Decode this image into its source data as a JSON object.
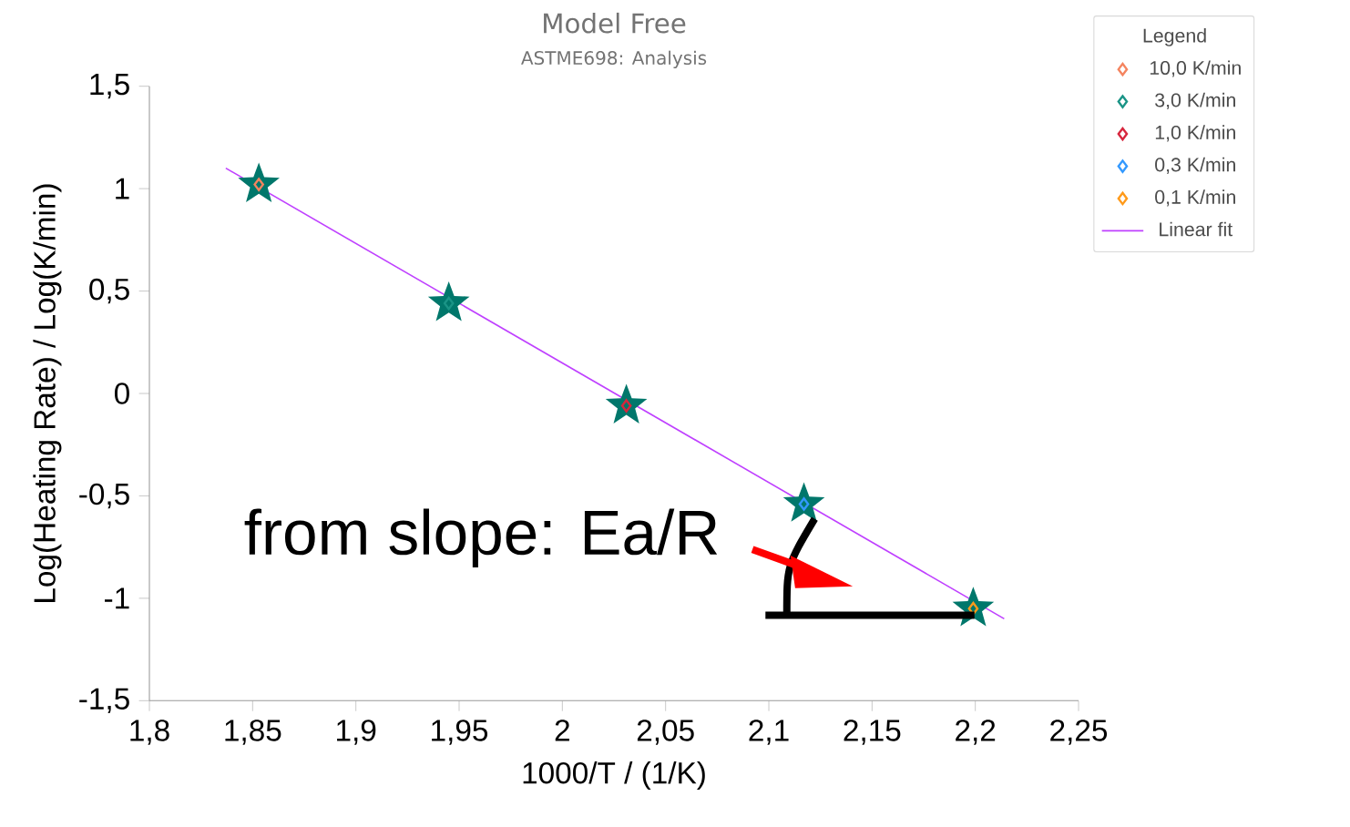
{
  "chart_data": {
    "type": "scatter",
    "title": "Model Free",
    "subtitle": "ASTME698: Analysis",
    "xlabel": "1000/T / (1/K)",
    "ylabel": "Log(Heating Rate) / Log(K/min)",
    "legend_title": "Legend",
    "annotations": [
      {
        "text": "from slope: Ea/R",
        "x": 2.117,
        "y": -0.54
      }
    ],
    "series": [
      {
        "color": "#00776b",
        "x": [
          1.853,
          1.945,
          2.031,
          2.117,
          2.199
        ],
        "values": [
          1.02,
          0.44,
          -0.06,
          -0.54,
          -1.05
        ],
        "marker": "star"
      },
      {
        "name": "10,0 K/min",
        "color": "#f4845f",
        "x": [
          1.853
        ],
        "values": [
          1.02
        ],
        "marker": "diamond"
      },
      {
        "name": "3,0 K/min",
        "color": "#1a9486",
        "x": [
          1.945
        ],
        "values": [
          0.44
        ],
        "marker": "diamond"
      },
      {
        "name": "1,0 K/min",
        "color": "#d7263d",
        "x": [
          2.031
        ],
        "values": [
          -0.06
        ],
        "marker": "diamond"
      },
      {
        "name": "0,3 K/min",
        "color": "#3399ff",
        "x": [
          2.117
        ],
        "values": [
          -0.54
        ],
        "marker": "diamond"
      },
      {
        "name": "0,1 K/min",
        "color": "#ff9a1a",
        "x": [
          2.199
        ],
        "values": [
          -1.05
        ],
        "marker": "diamond"
      },
      {
        "name": "Linear fit",
        "type": "line",
        "color": "#bf40ff",
        "x": [
          1.837,
          2.214
        ],
        "values": [
          1.1,
          -1.1
        ],
        "marker": "none"
      }
    ],
    "xlim": [
      1.8,
      2.25
    ],
    "xticks": [
      {
        "value": 1.8,
        "label": "1,8"
      },
      {
        "value": 1.85,
        "label": "1,85"
      },
      {
        "value": 1.9,
        "label": "1,9"
      },
      {
        "value": 1.95,
        "label": "1,95"
      },
      2,
      {
        "value": 2.05,
        "label": "2,05"
      },
      {
        "value": 2.1,
        "label": "2,1"
      },
      {
        "value": 2.15,
        "label": "2,15"
      },
      {
        "value": 2.2,
        "label": "2,2"
      },
      {
        "value": 2.25,
        "label": "2,25"
      }
    ],
    "ylim": [
      -1.5,
      1.5
    ],
    "yticks": [
      {
        "value": -1.5,
        "label": "-1,5"
      },
      -1,
      {
        "value": -0.5,
        "label": "-0,5"
      },
      0,
      {
        "value": 0.5,
        "label": "0,5"
      },
      1,
      {
        "value": 1.5,
        "label": "1,5"
      }
    ],
    "grid": false,
    "legend": "top right"
  }
}
